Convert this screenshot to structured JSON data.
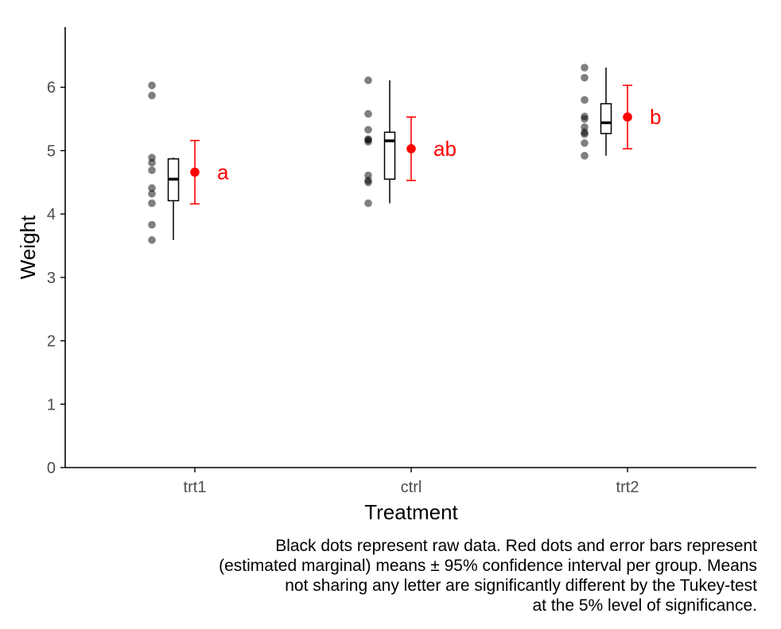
{
  "chart_data": {
    "type": "scatter",
    "xlabel": "Treatment",
    "ylabel": "Weight",
    "ylim": [
      0,
      6.95
    ],
    "yticks": [
      "0",
      "1",
      "2",
      "3",
      "4",
      "5",
      "6"
    ],
    "categories": [
      "trt1",
      "ctrl",
      "trt2"
    ],
    "grid": false,
    "colors": {
      "raw": "#000000",
      "mean": "#ff0000",
      "box": "#000000",
      "axis": "#000000",
      "tick_label": "#4d4d4d"
    },
    "groups": [
      {
        "name": "trt1",
        "raw": [
          4.81,
          4.17,
          4.41,
          3.59,
          5.87,
          3.83,
          6.03,
          4.89,
          4.32,
          4.69
        ],
        "box": {
          "min": 3.59,
          "q1": 4.21,
          "median": 4.55,
          "q3": 4.87,
          "max": 6.03,
          "whisker_low": 3.59,
          "whisker_high": 4.89
        },
        "mean": 4.66,
        "ci_low": 4.16,
        "ci_high": 5.16,
        "letter": "a"
      },
      {
        "name": "ctrl",
        "raw": [
          4.17,
          5.58,
          5.18,
          6.11,
          4.5,
          4.61,
          5.17,
          4.53,
          5.33,
          5.14
        ],
        "box": {
          "min": 4.17,
          "q1": 4.55,
          "median": 5.155,
          "q3": 5.29,
          "max": 6.11,
          "whisker_low": 4.17,
          "whisker_high": 6.11
        },
        "mean": 5.03,
        "ci_low": 4.53,
        "ci_high": 5.53,
        "letter": "ab"
      },
      {
        "name": "trt2",
        "raw": [
          6.31,
          5.12,
          5.54,
          5.5,
          5.37,
          5.29,
          4.92,
          6.15,
          5.8,
          5.26
        ],
        "box": {
          "min": 4.92,
          "q1": 5.27,
          "median": 5.44,
          "q3": 5.74,
          "max": 6.31,
          "whisker_low": 4.92,
          "whisker_high": 6.31
        },
        "mean": 5.53,
        "ci_low": 5.03,
        "ci_high": 6.03,
        "letter": "b"
      }
    ]
  },
  "caption": {
    "lines": [
      "Black dots represent raw data. Red dots and error bars represent",
      "(estimated marginal) means ± 95% confidence interval per group. Means",
      "not sharing any letter are significantly different by the Tukey-test",
      "at the 5% level of significance."
    ]
  }
}
